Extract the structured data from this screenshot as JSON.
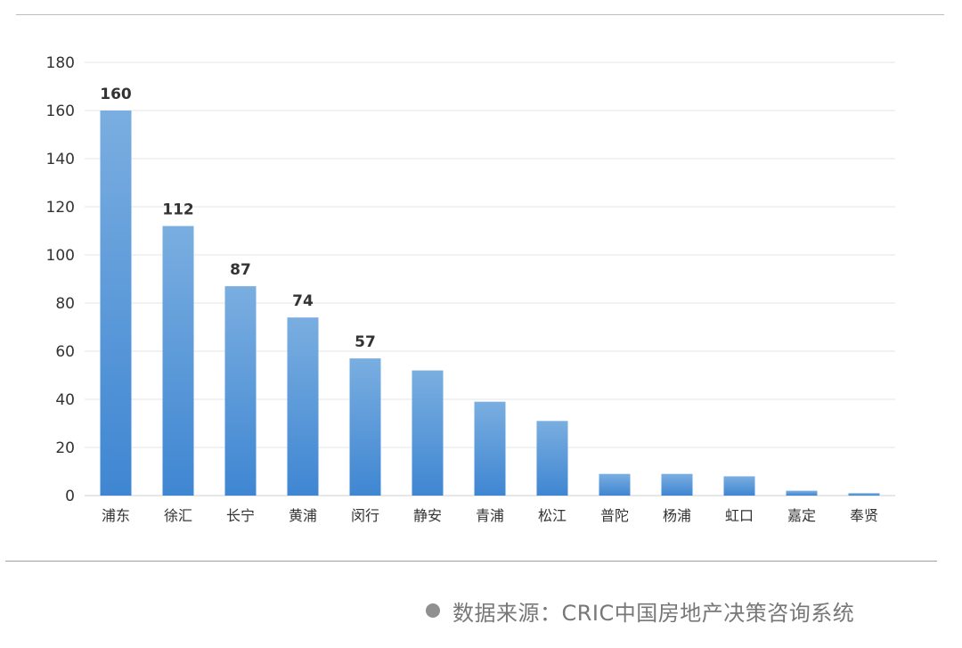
{
  "chart_data": {
    "type": "bar",
    "categories": [
      "浦东",
      "徐汇",
      "长宁",
      "黄浦",
      "闵行",
      "静安",
      "青浦",
      "松江",
      "普陀",
      "杨浦",
      "虹口",
      "嘉定",
      "奉贤"
    ],
    "values": [
      160,
      112,
      87,
      74,
      57,
      52,
      39,
      31,
      9,
      9,
      8,
      2,
      1
    ],
    "data_labels": [
      "160",
      "112",
      "87",
      "74",
      "57",
      "",
      "",
      "",
      "",
      "",
      "",
      "",
      ""
    ],
    "ylim": [
      0,
      180
    ],
    "yticks": [
      0,
      20,
      40,
      60,
      80,
      100,
      120,
      140,
      160,
      180
    ],
    "grid": true,
    "legend": "none",
    "bar_color_top": "#7aaee0",
    "bar_color_bottom": "#3f86d2"
  },
  "source": {
    "text": "数据来源：CRIC中国房地产决策咨询系统"
  }
}
